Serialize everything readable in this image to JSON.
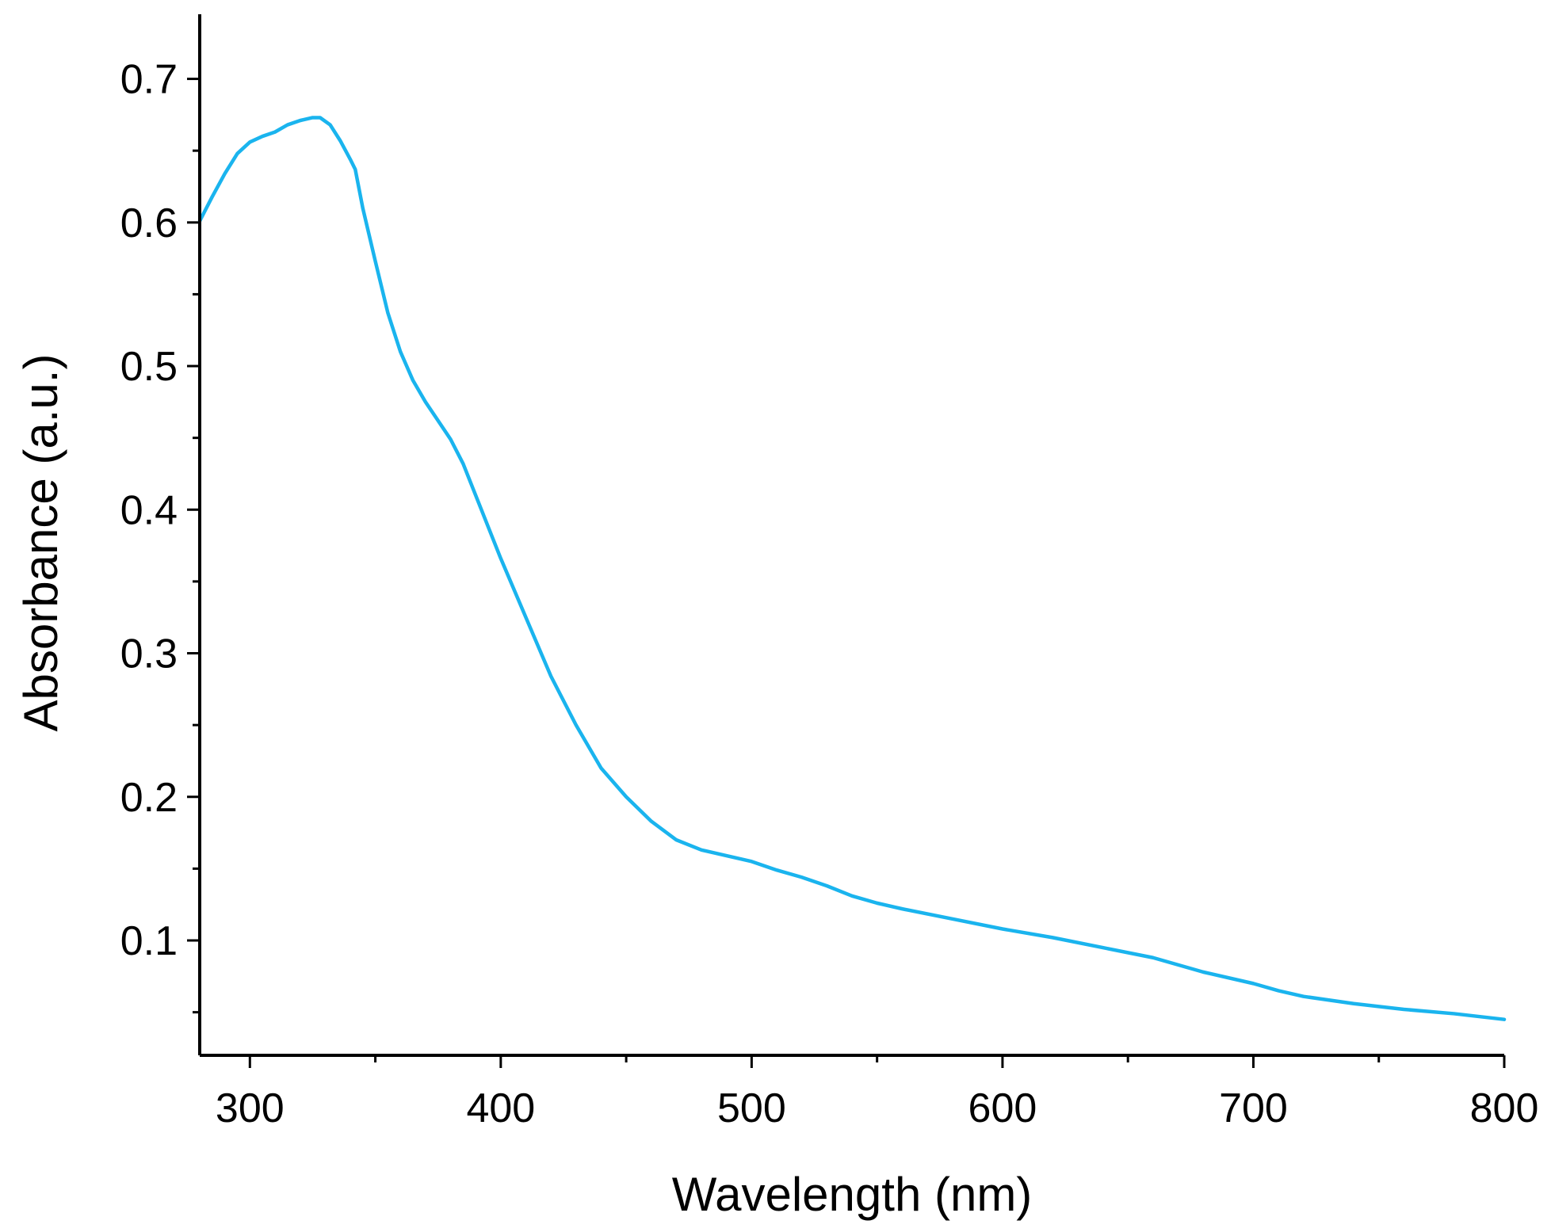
{
  "chart_data": {
    "type": "line",
    "title": "",
    "xlabel": "Wavelength (nm)",
    "ylabel": "Absorbance (a.u.)",
    "xlim": [
      280,
      800
    ],
    "ylim": [
      0.02,
      0.745
    ],
    "x_ticks": [
      300,
      400,
      500,
      600,
      700,
      800
    ],
    "x_tick_labels": [
      "300",
      "400",
      "500",
      "600",
      "700",
      "800"
    ],
    "x_minor_ticks": [
      350,
      450,
      550,
      650,
      750
    ],
    "y_ticks": [
      0.1,
      0.2,
      0.3,
      0.4,
      0.5,
      0.6,
      0.7
    ],
    "y_tick_labels": [
      "0.1",
      "0.2",
      "0.3",
      "0.4",
      "0.5",
      "0.6",
      "0.7"
    ],
    "y_minor_ticks": [
      0.05,
      0.15,
      0.25,
      0.35,
      0.45,
      0.55,
      0.65
    ],
    "grid": false,
    "legend": "none",
    "series": [
      {
        "color": "#1ab4ee",
        "x": [
          280,
          285,
          290,
          295,
          300,
          305,
          310,
          315,
          320,
          325,
          328,
          332,
          336,
          340,
          342,
          345,
          350,
          355,
          360,
          365,
          370,
          375,
          380,
          385,
          390,
          395,
          400,
          410,
          420,
          430,
          440,
          450,
          460,
          470,
          480,
          490,
          500,
          510,
          520,
          530,
          540,
          550,
          560,
          580,
          600,
          620,
          640,
          660,
          680,
          700,
          710,
          720,
          740,
          760,
          780,
          800
        ],
        "y": [
          0.601,
          0.618,
          0.634,
          0.648,
          0.656,
          0.66,
          0.663,
          0.668,
          0.671,
          0.673,
          0.673,
          0.668,
          0.657,
          0.644,
          0.637,
          0.61,
          0.573,
          0.537,
          0.51,
          0.49,
          0.475,
          0.462,
          0.449,
          0.432,
          0.41,
          0.388,
          0.366,
          0.325,
          0.284,
          0.25,
          0.22,
          0.2,
          0.183,
          0.17,
          0.163,
          0.159,
          0.155,
          0.149,
          0.144,
          0.138,
          0.131,
          0.126,
          0.122,
          0.115,
          0.108,
          0.102,
          0.095,
          0.088,
          0.078,
          0.07,
          0.065,
          0.061,
          0.056,
          0.052,
          0.049,
          0.045
        ]
      }
    ]
  }
}
